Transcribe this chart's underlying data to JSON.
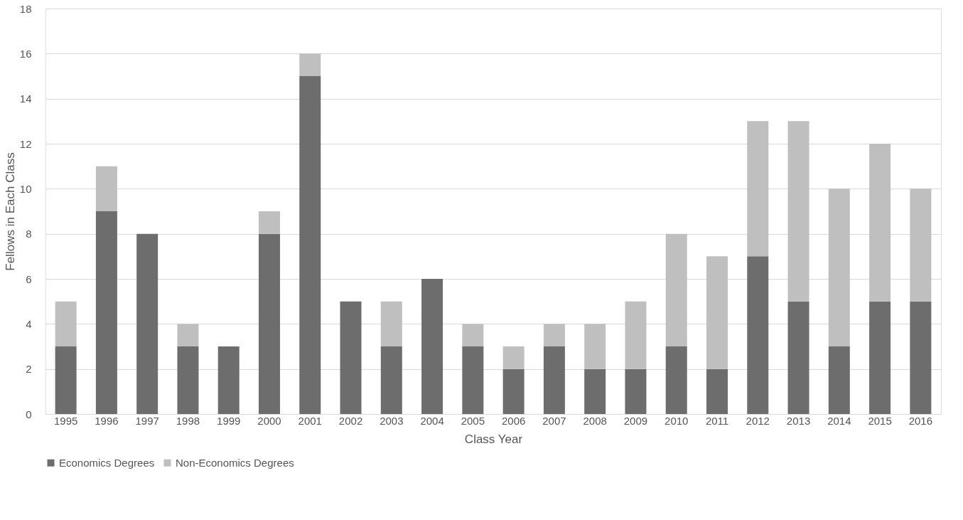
{
  "chart_data": {
    "type": "bar",
    "stacked": true,
    "xlabel": "Class Year",
    "ylabel": "Fellows in Each Class",
    "categories": [
      "1995",
      "1996",
      "1997",
      "1998",
      "1999",
      "2000",
      "2001",
      "2002",
      "2003",
      "2004",
      "2005",
      "2006",
      "2007",
      "2008",
      "2009",
      "2010",
      "2011",
      "2012",
      "2013",
      "2014",
      "2015",
      "2016"
    ],
    "series": [
      {
        "name": "Economics Degrees",
        "color": "#6d6d6d",
        "values": [
          3,
          9,
          8,
          3,
          3,
          8,
          15,
          5,
          3,
          6,
          3,
          2,
          3,
          2,
          2,
          3,
          2,
          7,
          5,
          3,
          5,
          5
        ]
      },
      {
        "name": "Non-Economics Degrees",
        "color": "#bfbfbf",
        "values": [
          2,
          2,
          0,
          1,
          0,
          1,
          1,
          0,
          2,
          0,
          1,
          1,
          1,
          2,
          3,
          5,
          5,
          6,
          8,
          7,
          7,
          5
        ]
      }
    ],
    "ylim": [
      0,
      18
    ],
    "yticks": [
      0,
      2,
      4,
      6,
      8,
      10,
      12,
      14,
      16,
      18
    ],
    "grid": "y",
    "legend": "bottom"
  }
}
